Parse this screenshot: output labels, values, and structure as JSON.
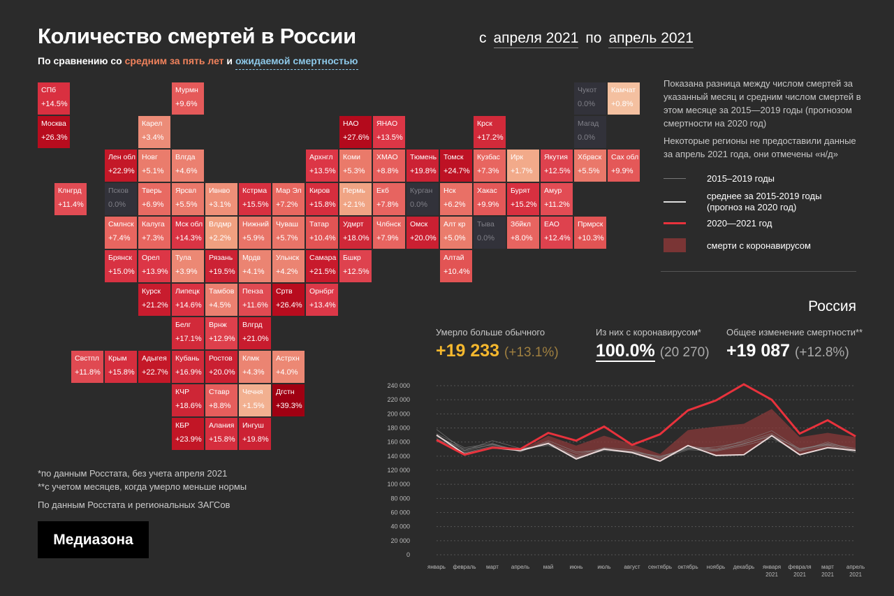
{
  "header": {
    "title": "Количество смертей в России",
    "subtitle_prefix": "По сравнению со ",
    "subtitle_avg": "средним за пять лет",
    "subtitle_and": " и ",
    "subtitle_expected": "ожидаемой смертностью",
    "period_from_label": "с",
    "period_from": "апреля 2021",
    "period_to_label": "по",
    "period_to": "апрель 2021"
  },
  "colors": {
    "background": "#2b2b2b",
    "accent_orange": "#f0825c",
    "accent_blue": "#8dc8e8",
    "line_2021": "#e8323c",
    "covid_area": "#8a3a3a",
    "stat_yellow": "#f5b82e"
  },
  "map": {
    "tiles": [
      {
        "name": "СПб",
        "value": "+14.5%",
        "col": 0,
        "row": 0,
        "color": "#d93040"
      },
      {
        "name": "Москва",
        "value": "+26.3%",
        "col": 0,
        "row": 1,
        "color": "#b80c1e"
      },
      {
        "name": "Клнгрд",
        "value": "+11.4%",
        "col": 0.5,
        "row": 3,
        "color": "#e24c54"
      },
      {
        "name": "Мурмн",
        "value": "+9.6%",
        "col": 4,
        "row": 0,
        "color": "#e55a5a"
      },
      {
        "name": "Карел",
        "value": "+3.4%",
        "col": 3,
        "row": 1,
        "color": "#ec8c78"
      },
      {
        "name": "Лен обл",
        "value": "+22.9%",
        "col": 2,
        "row": 2,
        "color": "#c41828"
      },
      {
        "name": "Новг",
        "value": "+5.1%",
        "col": 3,
        "row": 2,
        "color": "#ea7c6c"
      },
      {
        "name": "Влгда",
        "value": "+4.6%",
        "col": 4,
        "row": 2,
        "color": "#eb8070"
      },
      {
        "name": "Псков",
        "value": "0.0%",
        "col": 2,
        "row": 3,
        "nodata": true
      },
      {
        "name": "Тверь",
        "value": "+6.9%",
        "col": 3,
        "row": 3,
        "color": "#e86a62"
      },
      {
        "name": "Ярсвл",
        "value": "+5.5%",
        "col": 4,
        "row": 3,
        "color": "#ea786a"
      },
      {
        "name": "Ивнво",
        "value": "+3.1%",
        "col": 5,
        "row": 3,
        "color": "#ee9078"
      },
      {
        "name": "Кстрма",
        "value": "+15.5%",
        "col": 6,
        "row": 3,
        "color": "#d83040"
      },
      {
        "name": "Мар Эл",
        "value": "+7.2%",
        "col": 7,
        "row": 3,
        "color": "#e86860"
      },
      {
        "name": "Смлнск",
        "value": "+7.4%",
        "col": 2,
        "row": 4,
        "color": "#e86660"
      },
      {
        "name": "Калуга",
        "value": "+7.3%",
        "col": 3,
        "row": 4,
        "color": "#e86660"
      },
      {
        "name": "Мск обл",
        "value": "+14.3%",
        "col": 4,
        "row": 4,
        "color": "#da3444"
      },
      {
        "name": "Влдмр",
        "value": "+2.2%",
        "col": 5,
        "row": 4,
        "color": "#f0a080"
      },
      {
        "name": "Нижний",
        "value": "+5.9%",
        "col": 6,
        "row": 4,
        "color": "#e97468"
      },
      {
        "name": "Чуваш",
        "value": "+5.7%",
        "col": 7,
        "row": 4,
        "color": "#e97468"
      },
      {
        "name": "Брянск",
        "value": "+15.0%",
        "col": 2,
        "row": 5,
        "color": "#d83242"
      },
      {
        "name": "Орел",
        "value": "+13.9%",
        "col": 3,
        "row": 5,
        "color": "#dc3646"
      },
      {
        "name": "Тула",
        "value": "+3.9%",
        "col": 4,
        "row": 5,
        "color": "#ec8874"
      },
      {
        "name": "Рязань",
        "value": "+19.5%",
        "col": 5,
        "row": 5,
        "color": "#cc2234"
      },
      {
        "name": "Мрдв",
        "value": "+4.1%",
        "col": 6,
        "row": 5,
        "color": "#eb8472"
      },
      {
        "name": "Ульнск",
        "value": "+4.2%",
        "col": 7,
        "row": 5,
        "color": "#eb8472"
      },
      {
        "name": "Курск",
        "value": "+21.2%",
        "col": 3,
        "row": 6,
        "color": "#c81c2e"
      },
      {
        "name": "Липецк",
        "value": "+14.6%",
        "col": 4,
        "row": 6,
        "color": "#da3242"
      },
      {
        "name": "Тамбов",
        "value": "+4.5%",
        "col": 5,
        "row": 6,
        "color": "#eb8070"
      },
      {
        "name": "Пенза",
        "value": "+11.6%",
        "col": 6,
        "row": 6,
        "color": "#e04a52"
      },
      {
        "name": "Сртв",
        "value": "+26.4%",
        "col": 7,
        "row": 6,
        "color": "#b80c1e"
      },
      {
        "name": "Белг",
        "value": "+17.1%",
        "col": 4,
        "row": 7,
        "color": "#d22a3a"
      },
      {
        "name": "Врнж",
        "value": "+12.9%",
        "col": 5,
        "row": 7,
        "color": "#de404c"
      },
      {
        "name": "Влгрд",
        "value": "+21.0%",
        "col": 6,
        "row": 7,
        "color": "#c81c2e"
      },
      {
        "name": "Свстпл",
        "value": "+11.8%",
        "col": 1,
        "row": 8,
        "color": "#e04a52"
      },
      {
        "name": "Крым",
        "value": "+15.8%",
        "col": 2,
        "row": 8,
        "color": "#d62e3e"
      },
      {
        "name": "Адыгея",
        "value": "+22.7%",
        "col": 3,
        "row": 8,
        "color": "#c41828"
      },
      {
        "name": "Кубань",
        "value": "+16.9%",
        "col": 4,
        "row": 8,
        "color": "#d22a3a"
      },
      {
        "name": "Ростов",
        "value": "+20.0%",
        "col": 5,
        "row": 8,
        "color": "#ca2032"
      },
      {
        "name": "Клмк",
        "value": "+4.3%",
        "col": 6,
        "row": 8,
        "color": "#eb8472"
      },
      {
        "name": "Астрхн",
        "value": "+4.0%",
        "col": 7,
        "row": 8,
        "color": "#ec8874"
      },
      {
        "name": "КЧР",
        "value": "+18.6%",
        "col": 4,
        "row": 9,
        "color": "#ce2636"
      },
      {
        "name": "Ставр",
        "value": "+8.8%",
        "col": 5,
        "row": 9,
        "color": "#e65e5c"
      },
      {
        "name": "Чечня",
        "value": "+1.5%",
        "col": 6,
        "row": 9,
        "color": "#f2b090"
      },
      {
        "name": "Дгстн",
        "value": "+39.3%",
        "col": 7,
        "row": 9,
        "color": "#a00012"
      },
      {
        "name": "КБР",
        "value": "+23.9%",
        "col": 4,
        "row": 10,
        "color": "#c21626"
      },
      {
        "name": "Алания",
        "value": "+15.8%",
        "col": 5,
        "row": 10,
        "color": "#d62e3e"
      },
      {
        "name": "Ингуш",
        "value": "+19.8%",
        "col": 6,
        "row": 10,
        "color": "#cc2234"
      },
      {
        "name": "НАО",
        "value": "+27.6%",
        "col": 9,
        "row": 1,
        "color": "#b40a1c"
      },
      {
        "name": "ЯНАО",
        "value": "+13.5%",
        "col": 10,
        "row": 1,
        "color": "#dc3646"
      },
      {
        "name": "Крск",
        "value": "+17.2%",
        "col": 13,
        "row": 1,
        "color": "#d22a3a"
      },
      {
        "name": "Архнгл",
        "value": "+13.5%",
        "col": 8,
        "row": 2,
        "color": "#dc3646"
      },
      {
        "name": "Коми",
        "value": "+5.3%",
        "col": 9,
        "row": 2,
        "color": "#ea7a6a"
      },
      {
        "name": "ХМАО",
        "value": "+8.8%",
        "col": 10,
        "row": 2,
        "color": "#e65e5c"
      },
      {
        "name": "Тюмень",
        "value": "+19.8%",
        "col": 11,
        "row": 2,
        "color": "#cc2234"
      },
      {
        "name": "Томск",
        "value": "+24.7%",
        "col": 12,
        "row": 2,
        "color": "#be1224"
      },
      {
        "name": "Кузбас",
        "value": "+7.3%",
        "col": 13,
        "row": 2,
        "color": "#e86660"
      },
      {
        "name": "Ирк",
        "value": "+1.7%",
        "col": 14,
        "row": 2,
        "color": "#f2aa8a"
      },
      {
        "name": "Якутия",
        "value": "+12.5%",
        "col": 15,
        "row": 2,
        "color": "#de424e"
      },
      {
        "name": "Хбрвск",
        "value": "+5.5%",
        "col": 16,
        "row": 2,
        "color": "#ea786a"
      },
      {
        "name": "Сах обл",
        "value": "+9.9%",
        "col": 17,
        "row": 2,
        "color": "#e45858"
      },
      {
        "name": "Чукот",
        "value": "0.0%",
        "col": 16,
        "row": 0,
        "nodata": true
      },
      {
        "name": "Камчат",
        "value": "+0.8%",
        "col": 17,
        "row": 0,
        "color": "#f4c0a0"
      },
      {
        "name": "Магад",
        "value": "0.0%",
        "col": 16,
        "row": 1,
        "nodata": true
      },
      {
        "name": "Киров",
        "value": "+15.8%",
        "col": 8,
        "row": 3,
        "color": "#d62e3e"
      },
      {
        "name": "Пермь",
        "value": "+2.1%",
        "col": 9,
        "row": 3,
        "color": "#f0a484"
      },
      {
        "name": "Екб",
        "value": "+7.8%",
        "col": 10,
        "row": 3,
        "color": "#e76460"
      },
      {
        "name": "Курган",
        "value": "0.0%",
        "col": 11,
        "row": 3,
        "nodata": true
      },
      {
        "name": "Нск",
        "value": "+6.2%",
        "col": 12,
        "row": 3,
        "color": "#e97066"
      },
      {
        "name": "Хакас",
        "value": "+9.9%",
        "col": 13,
        "row": 3,
        "color": "#e45858"
      },
      {
        "name": "Бурят",
        "value": "+15.2%",
        "col": 14,
        "row": 3,
        "color": "#d83040"
      },
      {
        "name": "Амур",
        "value": "+11.2%",
        "col": 15,
        "row": 3,
        "color": "#e24c54"
      },
      {
        "name": "Татар",
        "value": "+10.4%",
        "col": 8,
        "row": 4,
        "color": "#e25454"
      },
      {
        "name": "Удмрт",
        "value": "+18.0%",
        "col": 9,
        "row": 4,
        "color": "#d02838"
      },
      {
        "name": "Члбнск",
        "value": "+7.9%",
        "col": 10,
        "row": 4,
        "color": "#e76460"
      },
      {
        "name": "Омск",
        "value": "+20.0%",
        "col": 11,
        "row": 4,
        "color": "#ca2032"
      },
      {
        "name": "Алт кр",
        "value": "+5.0%",
        "col": 12,
        "row": 4,
        "color": "#ea7c6c"
      },
      {
        "name": "Тыва",
        "value": "0.0%",
        "col": 13,
        "row": 4,
        "nodata": true
      },
      {
        "name": "Збйкл",
        "value": "+8.0%",
        "col": 14,
        "row": 4,
        "color": "#e76460"
      },
      {
        "name": "ЕАО",
        "value": "+12.4%",
        "col": 15,
        "row": 4,
        "color": "#de424e"
      },
      {
        "name": "Прмрск",
        "value": "+10.3%",
        "col": 16,
        "row": 4,
        "color": "#e25454"
      },
      {
        "name": "Самара",
        "value": "+21.5%",
        "col": 8,
        "row": 5,
        "color": "#c81a2c"
      },
      {
        "name": "Бшкр",
        "value": "+12.5%",
        "col": 9,
        "row": 5,
        "color": "#de424e"
      },
      {
        "name": "Алтай",
        "value": "+10.4%",
        "col": 12,
        "row": 5,
        "color": "#e25454"
      },
      {
        "name": "Орнбрг",
        "value": "+13.4%",
        "col": 8,
        "row": 6,
        "color": "#dc3848"
      }
    ]
  },
  "notes": {
    "p1": "Показана разница между числом смертей за указанный месяц и средним числом смертей в этом месяце за 2015—2019 годы (прогнозом смертности на 2020 год)",
    "p2": "Некоторые регионы не предоставили данные за апрель 2021 года, они отмечены «н/д»"
  },
  "legend": {
    "years": "2015–2019 годы",
    "avg": "среднее за 2015-2019 годы",
    "avg2": "(прогноз на 2020 год)",
    "current": "2020—2021 год",
    "covid": "смерти с коронавирусом"
  },
  "stats": {
    "region": "Россия",
    "excess_label": "Умерло больше обычного",
    "excess_value": "+19 233",
    "excess_pct": "(+13.1%)",
    "covid_label": "Из них с коронавирусом*",
    "covid_value": "100.0%",
    "covid_count": "(20 270)",
    "total_label": "Общее изменение смертности**",
    "total_value": "+19 087",
    "total_pct": "(+12.8%)"
  },
  "footer": {
    "n1": "*по данным Росстата, без учета апреля 2021",
    "n2": "**с учетом месяцев, когда умерло меньше нормы",
    "source": "По данным Росстата и региональных ЗАГСов",
    "logo": "Медиазона"
  },
  "chart_data": {
    "type": "line",
    "categories": [
      [
        "январь"
      ],
      [
        "февраль"
      ],
      [
        "март"
      ],
      [
        "апрель"
      ],
      [
        "май"
      ],
      [
        "июнь"
      ],
      [
        "июль"
      ],
      [
        "август"
      ],
      [
        "сентябрь"
      ],
      [
        "октябрь"
      ],
      [
        "ноябрь"
      ],
      [
        "декабрь"
      ],
      [
        "января",
        "2021"
      ],
      [
        "февраля",
        "2021"
      ],
      [
        "март",
        "2021"
      ],
      [
        "апрель",
        "2021"
      ]
    ],
    "ylim": [
      0,
      240000
    ],
    "yticks": [
      0,
      20000,
      40000,
      60000,
      80000,
      100000,
      120000,
      140000,
      160000,
      180000,
      200000,
      220000,
      240000
    ],
    "ytick_labels": [
      "0",
      "20 000",
      "40 000",
      "60 000",
      "80 000",
      "100 000",
      "120 000",
      "140 000",
      "160 000",
      "180 000",
      "200 000",
      "220 000",
      "240 000"
    ],
    "series": [
      {
        "name": "2015–2019 годы",
        "role": "history",
        "values": [
          [
            178000,
            148000,
            162000,
            151000,
            155000,
            141000,
            152000,
            149000,
            137000,
            154000,
            150000,
            162000,
            176000,
            150000,
            158000,
            151000
          ],
          [
            172000,
            152000,
            158000,
            146000,
            162000,
            146000,
            149000,
            146000,
            140000,
            150000,
            153000,
            160000,
            172000,
            148000,
            160000,
            148000
          ],
          [
            168000,
            150000,
            156000,
            149000,
            158000,
            144000,
            150000,
            147000,
            139000,
            152000,
            149000,
            158000,
            168000,
            151000,
            156000,
            147000
          ],
          [
            165000,
            145000,
            154000,
            150000,
            157000,
            138000,
            148000,
            145000,
            136000,
            149000,
            147000,
            155000,
            165000,
            147000,
            155000,
            145000
          ],
          [
            170000,
            147000,
            157000,
            148000,
            160000,
            139000,
            151000,
            146000,
            138000,
            151000,
            148000,
            157000,
            170000,
            149000,
            157000,
            149000
          ]
        ]
      },
      {
        "name": "среднее за 2015-2019 годы",
        "role": "average",
        "values": [
          170000,
          143000,
          152000,
          148000,
          158000,
          136000,
          150000,
          145000,
          133000,
          155000,
          141000,
          142000,
          169000,
          142000,
          152000,
          148000
        ]
      },
      {
        "name": "2020—2021 год",
        "role": "current",
        "values": [
          163000,
          142000,
          152000,
          150000,
          173000,
          162000,
          182000,
          156000,
          171000,
          205000,
          219000,
          242000,
          220000,
          172000,
          191000,
          168000
        ]
      },
      {
        "name": "смерти с коронавирусом",
        "role": "covid",
        "values": [
          0,
          0,
          0,
          0,
          11000,
          19000,
          19000,
          12000,
          10000,
          22000,
          41000,
          44000,
          38000,
          25000,
          21000,
          19000
        ]
      }
    ]
  }
}
